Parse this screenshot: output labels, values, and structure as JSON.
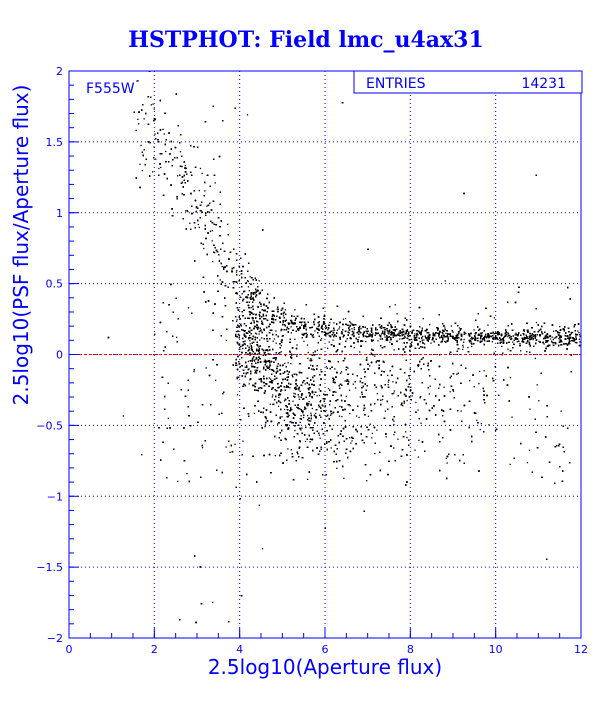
{
  "chart_data": {
    "type": "scatter",
    "title": "HSTPHOT: Field lmc_u4ax31",
    "filter_label": "F555W",
    "xlabel": "2.5log10(Aperture flux)",
    "ylabel": "2.5log10(PSF flux/Aperture flux)",
    "xlim": [
      0,
      12
    ],
    "ylim": [
      -2,
      2
    ],
    "x_ticks": [
      0,
      2,
      4,
      6,
      8,
      10,
      12
    ],
    "x_tick_labels": [
      "0",
      "2",
      "4",
      "6",
      "8",
      "10",
      "12"
    ],
    "y_ticks": [
      -2,
      -1.5,
      -1,
      -0.5,
      0,
      0.5,
      1,
      1.5,
      2
    ],
    "y_tick_labels": [
      "−2",
      "−1.5",
      "−1",
      "−0.5",
      "0",
      "0.5",
      "1",
      "1.5",
      "2"
    ],
    "grid": true,
    "reference_line_y": 0,
    "stats_box": {
      "label": "ENTRIES",
      "value": "14231",
      "entries": 14231
    },
    "density_model": {
      "upper_branch": [
        [
          1.2,
          1.9
        ],
        [
          2.0,
          1.55
        ],
        [
          2.8,
          1.2
        ],
        [
          3.3,
          0.9
        ],
        [
          3.8,
          0.6
        ],
        [
          4.2,
          0.4
        ],
        [
          4.6,
          0.28
        ],
        [
          5.5,
          0.2
        ],
        [
          7.0,
          0.15
        ],
        [
          9.0,
          0.13
        ],
        [
          12.0,
          0.12
        ]
      ],
      "lower_plume_center": [
        [
          4.0,
          0.1
        ],
        [
          4.5,
          -0.05
        ],
        [
          5.0,
          -0.25
        ],
        [
          5.5,
          -0.35
        ],
        [
          6.5,
          -0.3
        ],
        [
          8.0,
          -0.25
        ],
        [
          10.0,
          -0.25
        ]
      ]
    },
    "colors": {
      "points": "#000000",
      "axes": "#0000ff",
      "grid": "#0000ff",
      "reference_line": "#ff0000",
      "text": "#0000ff"
    }
  }
}
